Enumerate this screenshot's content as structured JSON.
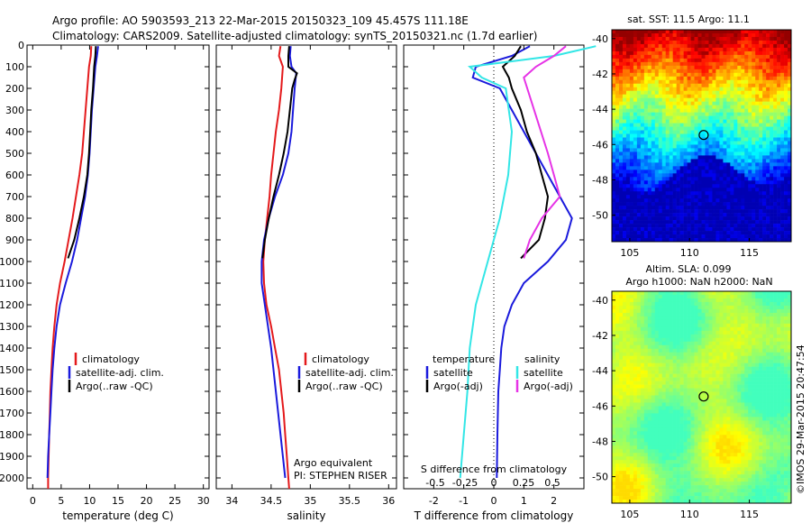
{
  "header": {
    "line1": "Argo profile: AO 5903593_213 22-Mar-2015 20150323_109 45.457S 111.18E",
    "line2": "Climatology: CARS2009. Satellite-adjusted climatology: synTS_20150321.nc (1.7d earlier)"
  },
  "colors": {
    "climatology": "#e41a1c",
    "satellite": "#1a1adc",
    "argo": "#000000",
    "sat_salinity": "#33e6e6",
    "argo_salinity": "#e633e6"
  },
  "chart_data": [
    {
      "type": "line",
      "id": "temperature-profile",
      "xlabel": "temperature (deg C)",
      "xlim": [
        -1,
        31
      ],
      "ylim": [
        2050,
        0
      ],
      "xticks": [
        0,
        5,
        10,
        15,
        20,
        25,
        30
      ],
      "yticks": [
        0,
        100,
        200,
        300,
        400,
        500,
        600,
        700,
        800,
        900,
        1000,
        1100,
        1200,
        1300,
        1400,
        1500,
        1600,
        1700,
        1800,
        1900,
        2000
      ],
      "legend": [
        "climatology",
        "satellite-adj. clim.",
        "Argo(..raw -QC)"
      ],
      "series": [
        {
          "name": "climatology",
          "points": [
            [
              10.3,
              5
            ],
            [
              10.2,
              50
            ],
            [
              9.9,
              100
            ],
            [
              9.6,
              200
            ],
            [
              9.3,
              300
            ],
            [
              9.0,
              400
            ],
            [
              8.7,
              500
            ],
            [
              8.2,
              600
            ],
            [
              7.6,
              700
            ],
            [
              7.0,
              800
            ],
            [
              6.3,
              900
            ],
            [
              5.6,
              1000
            ],
            [
              4.8,
              1100
            ],
            [
              4.2,
              1200
            ],
            [
              3.8,
              1300
            ],
            [
              3.5,
              1400
            ],
            [
              3.3,
              1500
            ],
            [
              3.1,
              1600
            ],
            [
              3.0,
              1700
            ],
            [
              2.9,
              1800
            ],
            [
              2.8,
              1900
            ],
            [
              2.7,
              2000
            ],
            [
              2.7,
              2050
            ]
          ]
        },
        {
          "name": "satellite-adj. clim.",
          "points": [
            [
              11.5,
              5
            ],
            [
              11.3,
              50
            ],
            [
              11.0,
              100
            ],
            [
              10.7,
              200
            ],
            [
              10.4,
              300
            ],
            [
              10.2,
              400
            ],
            [
              10.0,
              500
            ],
            [
              9.7,
              600
            ],
            [
              9.2,
              700
            ],
            [
              8.5,
              800
            ],
            [
              7.8,
              900
            ],
            [
              6.9,
              1000
            ],
            [
              5.8,
              1100
            ],
            [
              4.8,
              1200
            ],
            [
              4.2,
              1300
            ],
            [
              3.8,
              1400
            ],
            [
              3.5,
              1500
            ],
            [
              3.3,
              1600
            ],
            [
              3.1,
              1700
            ],
            [
              2.9,
              1800
            ],
            [
              2.7,
              1900
            ],
            [
              2.6,
              2000
            ]
          ]
        },
        {
          "name": "Argo(..raw -QC)",
          "points": [
            [
              11.1,
              5
            ],
            [
              11.0,
              50
            ],
            [
              10.8,
              100
            ],
            [
              10.6,
              200
            ],
            [
              10.3,
              300
            ],
            [
              10.1,
              400
            ],
            [
              9.9,
              500
            ],
            [
              9.6,
              600
            ],
            [
              9.0,
              700
            ],
            [
              8.2,
              800
            ],
            [
              7.3,
              900
            ],
            [
              6.2,
              985
            ]
          ]
        }
      ]
    },
    {
      "type": "line",
      "id": "salinity-profile",
      "xlabel": "salinity",
      "xlim": [
        33.8,
        36.1
      ],
      "ylim": [
        2050,
        0
      ],
      "xticks": [
        34,
        34.5,
        35,
        35.5,
        36
      ],
      "legend": [
        "climatology",
        "satellite-adj. clim.",
        "Argo(..raw -QC)"
      ],
      "annotation": [
        "Argo equivalent",
        "PI: STEPHEN RISER"
      ],
      "series": [
        {
          "name": "climatology",
          "points": [
            [
              34.62,
              5
            ],
            [
              34.6,
              50
            ],
            [
              34.65,
              100
            ],
            [
              34.63,
              200
            ],
            [
              34.6,
              300
            ],
            [
              34.56,
              400
            ],
            [
              34.53,
              500
            ],
            [
              34.5,
              600
            ],
            [
              34.48,
              700
            ],
            [
              34.45,
              800
            ],
            [
              34.42,
              900
            ],
            [
              34.4,
              1000
            ],
            [
              34.41,
              1100
            ],
            [
              34.44,
              1200
            ],
            [
              34.5,
              1300
            ],
            [
              34.55,
              1400
            ],
            [
              34.6,
              1500
            ],
            [
              34.63,
              1600
            ],
            [
              34.66,
              1700
            ],
            [
              34.68,
              1800
            ],
            [
              34.7,
              1900
            ],
            [
              34.72,
              2000
            ],
            [
              34.73,
              2050
            ]
          ]
        },
        {
          "name": "satellite-adj. clim.",
          "points": [
            [
              34.75,
              5
            ],
            [
              34.74,
              50
            ],
            [
              34.76,
              100
            ],
            [
              34.82,
              130
            ],
            [
              34.8,
              200
            ],
            [
              34.78,
              300
            ],
            [
              34.76,
              400
            ],
            [
              34.72,
              500
            ],
            [
              34.65,
              600
            ],
            [
              34.55,
              700
            ],
            [
              34.47,
              800
            ],
            [
              34.41,
              900
            ],
            [
              34.38,
              1000
            ],
            [
              34.38,
              1100
            ],
            [
              34.42,
              1200
            ],
            [
              34.46,
              1300
            ],
            [
              34.5,
              1400
            ],
            [
              34.53,
              1500
            ],
            [
              34.56,
              1600
            ],
            [
              34.59,
              1700
            ],
            [
              34.62,
              1800
            ],
            [
              34.65,
              1900
            ],
            [
              34.68,
              2000
            ]
          ]
        },
        {
          "name": "Argo(..raw -QC)",
          "points": [
            [
              34.73,
              5
            ],
            [
              34.72,
              50
            ],
            [
              34.72,
              100
            ],
            [
              34.83,
              130
            ],
            [
              34.8,
              160
            ],
            [
              34.77,
              200
            ],
            [
              34.74,
              300
            ],
            [
              34.71,
              400
            ],
            [
              34.66,
              500
            ],
            [
              34.6,
              600
            ],
            [
              34.53,
              700
            ],
            [
              34.47,
              800
            ],
            [
              34.42,
              900
            ],
            [
              34.39,
              985
            ]
          ]
        }
      ]
    },
    {
      "type": "line",
      "id": "difference-profile",
      "xlabel": "T difference from climatology",
      "xlim_t": [
        -3,
        3
      ],
      "ylim": [
        2050,
        0
      ],
      "xticks_t": [
        -2,
        -1,
        0,
        1,
        2
      ],
      "s_axis_label": "S difference from climatology",
      "xticks_s": [
        "-0.5",
        "-0.25",
        "0",
        "0.25",
        "0.5"
      ],
      "legend_t_title": "temperature",
      "legend_s_title": "salinity",
      "legend": [
        "satellite",
        "Argo(-adj)",
        "satellite",
        "Argo(-adj)"
      ],
      "series": [
        {
          "name": "T satellite",
          "points": [
            [
              1.2,
              5
            ],
            [
              0.6,
              50
            ],
            [
              -0.6,
              100
            ],
            [
              -0.7,
              150
            ],
            [
              0.2,
              200
            ],
            [
              0.6,
              300
            ],
            [
              1.0,
              400
            ],
            [
              1.4,
              500
            ],
            [
              1.8,
              600
            ],
            [
              2.2,
              700
            ],
            [
              2.6,
              800
            ],
            [
              2.4,
              900
            ],
            [
              1.8,
              1000
            ],
            [
              1.0,
              1100
            ],
            [
              0.6,
              1200
            ],
            [
              0.35,
              1300
            ],
            [
              0.25,
              1400
            ],
            [
              0.2,
              1500
            ],
            [
              0.15,
              1600
            ],
            [
              0.12,
              1800
            ],
            [
              0.1,
              2000
            ]
          ]
        },
        {
          "name": "T Argo(-adj)",
          "points": [
            [
              0.9,
              5
            ],
            [
              0.7,
              50
            ],
            [
              0.3,
              100
            ],
            [
              0.5,
              150
            ],
            [
              0.6,
              200
            ],
            [
              0.9,
              300
            ],
            [
              1.1,
              400
            ],
            [
              1.4,
              500
            ],
            [
              1.6,
              600
            ],
            [
              1.8,
              700
            ],
            [
              1.7,
              800
            ],
            [
              1.5,
              900
            ],
            [
              0.9,
              985
            ]
          ]
        },
        {
          "name": "S satellite",
          "points": [
            [
              0.85,
              5
            ],
            [
              0.5,
              50
            ],
            [
              -0.2,
              100
            ],
            [
              -0.1,
              150
            ],
            [
              0.1,
              200
            ],
            [
              0.15,
              400
            ],
            [
              0.12,
              600
            ],
            [
              0.05,
              800
            ],
            [
              -0.05,
              1000
            ],
            [
              -0.15,
              1200
            ],
            [
              -0.2,
              1400
            ],
            [
              -0.22,
              1600
            ],
            [
              -0.25,
              1800
            ],
            [
              -0.28,
              2000
            ]
          ]
        },
        {
          "name": "S Argo(-adj)",
          "points": [
            [
              0.6,
              5
            ],
            [
              0.5,
              50
            ],
            [
              0.35,
              100
            ],
            [
              0.25,
              150
            ],
            [
              0.45,
              500
            ],
            [
              0.5,
              600
            ],
            [
              0.55,
              700
            ],
            [
              0.4,
              800
            ],
            [
              0.3,
              900
            ],
            [
              0.25,
              985
            ]
          ]
        }
      ]
    },
    {
      "type": "heatmap",
      "id": "sst-map",
      "title": "sat. SST: 11.5  Argo: 11.1",
      "xlim": [
        103.5,
        118.5
      ],
      "ylim": [
        -51.5,
        -39.5
      ],
      "xticks": [
        105,
        110,
        115
      ],
      "yticks": [
        -40,
        -42,
        -44,
        -46,
        -48,
        -50
      ],
      "marker": [
        111.18,
        -45.457
      ]
    },
    {
      "type": "heatmap",
      "id": "sla-map",
      "title": "Altim. SLA: 0.099",
      "subtitle": "Argo h1000: NaN  h2000: NaN",
      "xlim": [
        103.5,
        118.5
      ],
      "ylim": [
        -51.5,
        -39.5
      ],
      "xticks": [
        105,
        110,
        115
      ],
      "yticks": [
        -40,
        -42,
        -44,
        -46,
        -48,
        -50
      ],
      "marker": [
        111.18,
        -45.457
      ]
    }
  ],
  "footer": {
    "stamp": "©IMOS 29-Mar-2015 20:47:54"
  }
}
